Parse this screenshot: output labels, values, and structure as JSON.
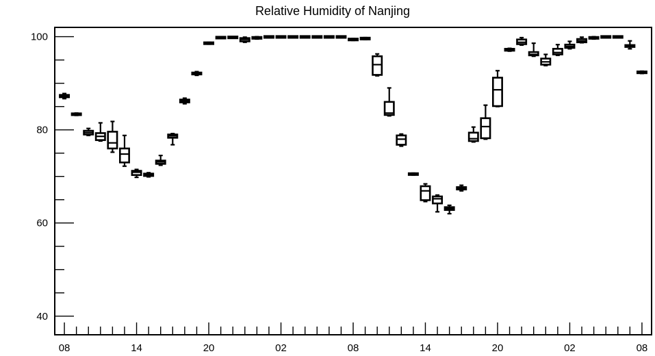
{
  "chart_data": {
    "type": "box",
    "title": "Relative Humidity of Nanjing",
    "xlabel": "",
    "ylabel": "",
    "ylim": [
      36,
      102
    ],
    "y_ticks": [
      40,
      60,
      80,
      100
    ],
    "x_tick_labels": [
      "08",
      "14",
      "20",
      "02",
      "08",
      "14",
      "20",
      "02",
      "08"
    ],
    "x_tick_positions": [
      0,
      6,
      12,
      18,
      24,
      30,
      36,
      42,
      48
    ],
    "x_range": [
      -0.8,
      48.8
    ],
    "grid": false,
    "boxes": [
      {
        "x": 0,
        "min": 86.7,
        "q1": 87.0,
        "median": 87.2,
        "q3": 87.5,
        "max": 87.8
      },
      {
        "x": 1,
        "min": 83.1,
        "q1": 83.2,
        "median": 83.4,
        "q3": 83.5,
        "max": 83.6
      },
      {
        "x": 2,
        "min": 78.8,
        "q1": 79.0,
        "median": 79.4,
        "q3": 79.8,
        "max": 80.3
      },
      {
        "x": 3,
        "min": 77.6,
        "q1": 77.8,
        "median": 78.6,
        "q3": 79.3,
        "max": 81.5
      },
      {
        "x": 4,
        "min": 75.2,
        "q1": 76.0,
        "median": 77.2,
        "q3": 79.6,
        "max": 81.8
      },
      {
        "x": 5,
        "min": 72.2,
        "q1": 73.0,
        "median": 74.8,
        "q3": 76.0,
        "max": 78.8
      },
      {
        "x": 6,
        "min": 69.8,
        "q1": 70.3,
        "median": 70.9,
        "q3": 71.2,
        "max": 71.5
      },
      {
        "x": 7,
        "min": 69.9,
        "q1": 70.1,
        "median": 70.4,
        "q3": 70.6,
        "max": 70.8
      },
      {
        "x": 8,
        "min": 72.4,
        "q1": 72.7,
        "median": 73.1,
        "q3": 73.4,
        "max": 74.5
      },
      {
        "x": 9,
        "min": 76.8,
        "q1": 78.3,
        "median": 78.7,
        "q3": 79.0,
        "max": 79.2
      },
      {
        "x": 10,
        "min": 85.6,
        "q1": 85.9,
        "median": 86.2,
        "q3": 86.5,
        "max": 86.8
      },
      {
        "x": 11,
        "min": 91.7,
        "q1": 91.9,
        "median": 92.1,
        "q3": 92.3,
        "max": 92.5
      },
      {
        "x": 12,
        "min": 98.4,
        "q1": 98.5,
        "median": 98.6,
        "q3": 98.7,
        "max": 98.8
      },
      {
        "x": 13,
        "min": 99.6,
        "q1": 99.7,
        "median": 99.8,
        "q3": 99.9,
        "max": 100.0
      },
      {
        "x": 14,
        "min": 99.8,
        "q1": 99.8,
        "median": 99.9,
        "q3": 99.9,
        "max": 100.0
      },
      {
        "x": 15,
        "min": 98.8,
        "q1": 99.0,
        "median": 99.4,
        "q3": 99.7,
        "max": 99.9
      },
      {
        "x": 16,
        "min": 99.5,
        "q1": 99.6,
        "median": 99.8,
        "q3": 99.9,
        "max": 100.0
      },
      {
        "x": 17,
        "min": 99.9,
        "q1": 99.9,
        "median": 100.0,
        "q3": 100.0,
        "max": 100.0
      },
      {
        "x": 18,
        "min": 99.9,
        "q1": 99.9,
        "median": 100.0,
        "q3": 100.0,
        "max": 100.0
      },
      {
        "x": 19,
        "min": 99.9,
        "q1": 99.9,
        "median": 100.0,
        "q3": 100.0,
        "max": 100.0
      },
      {
        "x": 20,
        "min": 99.9,
        "q1": 99.9,
        "median": 100.0,
        "q3": 100.0,
        "max": 100.0
      },
      {
        "x": 21,
        "min": 99.9,
        "q1": 99.9,
        "median": 100.0,
        "q3": 100.0,
        "max": 100.0
      },
      {
        "x": 22,
        "min": 99.9,
        "q1": 99.9,
        "median": 100.0,
        "q3": 100.0,
        "max": 100.0
      },
      {
        "x": 23,
        "min": 99.9,
        "q1": 99.9,
        "median": 100.0,
        "q3": 100.0,
        "max": 100.0
      },
      {
        "x": 24,
        "min": 99.2,
        "q1": 99.3,
        "median": 99.4,
        "q3": 99.5,
        "max": 99.6
      },
      {
        "x": 25,
        "min": 99.4,
        "q1": 99.5,
        "median": 99.6,
        "q3": 99.7,
        "max": 99.8
      },
      {
        "x": 26,
        "min": 91.6,
        "q1": 91.8,
        "median": 94.0,
        "q3": 95.8,
        "max": 96.3
      },
      {
        "x": 27,
        "min": 83.0,
        "q1": 83.2,
        "median": 83.6,
        "q3": 86.0,
        "max": 89.0
      },
      {
        "x": 28,
        "min": 76.5,
        "q1": 76.8,
        "median": 78.0,
        "q3": 78.8,
        "max": 79.1
      },
      {
        "x": 29,
        "min": 70.3,
        "q1": 70.4,
        "median": 70.5,
        "q3": 70.6,
        "max": 70.7
      },
      {
        "x": 30,
        "min": 64.6,
        "q1": 64.9,
        "median": 66.9,
        "q3": 67.9,
        "max": 68.4
      },
      {
        "x": 31,
        "min": 62.4,
        "q1": 64.2,
        "median": 65.2,
        "q3": 65.7,
        "max": 66.0
      },
      {
        "x": 32,
        "min": 62.0,
        "q1": 62.8,
        "median": 63.1,
        "q3": 63.4,
        "max": 63.8
      },
      {
        "x": 33,
        "min": 66.9,
        "q1": 67.2,
        "median": 67.4,
        "q3": 67.7,
        "max": 68.1
      },
      {
        "x": 34,
        "min": 77.4,
        "q1": 77.6,
        "median": 78.1,
        "q3": 79.4,
        "max": 80.6
      },
      {
        "x": 35,
        "min": 78.0,
        "q1": 78.2,
        "median": 80.7,
        "q3": 82.5,
        "max": 85.3
      },
      {
        "x": 36,
        "min": 85.0,
        "q1": 85.1,
        "median": 88.6,
        "q3": 91.2,
        "max": 92.7
      },
      {
        "x": 37,
        "min": 96.9,
        "q1": 97.0,
        "median": 97.2,
        "q3": 97.4,
        "max": 97.5
      },
      {
        "x": 38,
        "min": 98.2,
        "q1": 98.4,
        "median": 98.8,
        "q3": 99.4,
        "max": 99.8
      },
      {
        "x": 39,
        "min": 95.8,
        "q1": 96.0,
        "median": 96.2,
        "q3": 96.7,
        "max": 98.6
      },
      {
        "x": 40,
        "min": 93.8,
        "q1": 94.0,
        "median": 94.6,
        "q3": 95.3,
        "max": 96.2
      },
      {
        "x": 41,
        "min": 96.0,
        "q1": 96.2,
        "median": 96.6,
        "q3": 97.4,
        "max": 98.3
      },
      {
        "x": 42,
        "min": 97.4,
        "q1": 97.6,
        "median": 97.9,
        "q3": 98.3,
        "max": 99.0
      },
      {
        "x": 43,
        "min": 98.7,
        "q1": 98.8,
        "median": 99.1,
        "q3": 99.5,
        "max": 99.9
      },
      {
        "x": 44,
        "min": 99.5,
        "q1": 99.6,
        "median": 99.8,
        "q3": 99.9,
        "max": 100.0
      },
      {
        "x": 45,
        "min": 99.9,
        "q1": 99.9,
        "median": 100.0,
        "q3": 100.0,
        "max": 100.0
      },
      {
        "x": 46,
        "min": 99.9,
        "q1": 99.9,
        "median": 100.0,
        "q3": 100.0,
        "max": 100.0
      },
      {
        "x": 47,
        "min": 97.4,
        "q1": 97.8,
        "median": 98.0,
        "q3": 98.2,
        "max": 99.1
      },
      {
        "x": 48,
        "min": 92.1,
        "q1": 92.2,
        "median": 92.4,
        "q3": 92.5,
        "max": 92.6
      }
    ]
  }
}
